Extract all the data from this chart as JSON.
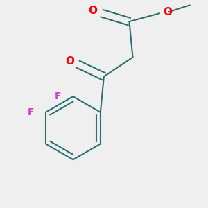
{
  "background_color": "#efefef",
  "bond_color": "#2d6e6e",
  "oxygen_color": "#ff0000",
  "fluorine_color": "#cc44cc",
  "line_width": 1.5,
  "figsize": [
    3.0,
    3.0
  ],
  "dpi": 100,
  "xlim": [
    0.0,
    3.0
  ],
  "ylim": [
    0.0,
    3.0
  ]
}
